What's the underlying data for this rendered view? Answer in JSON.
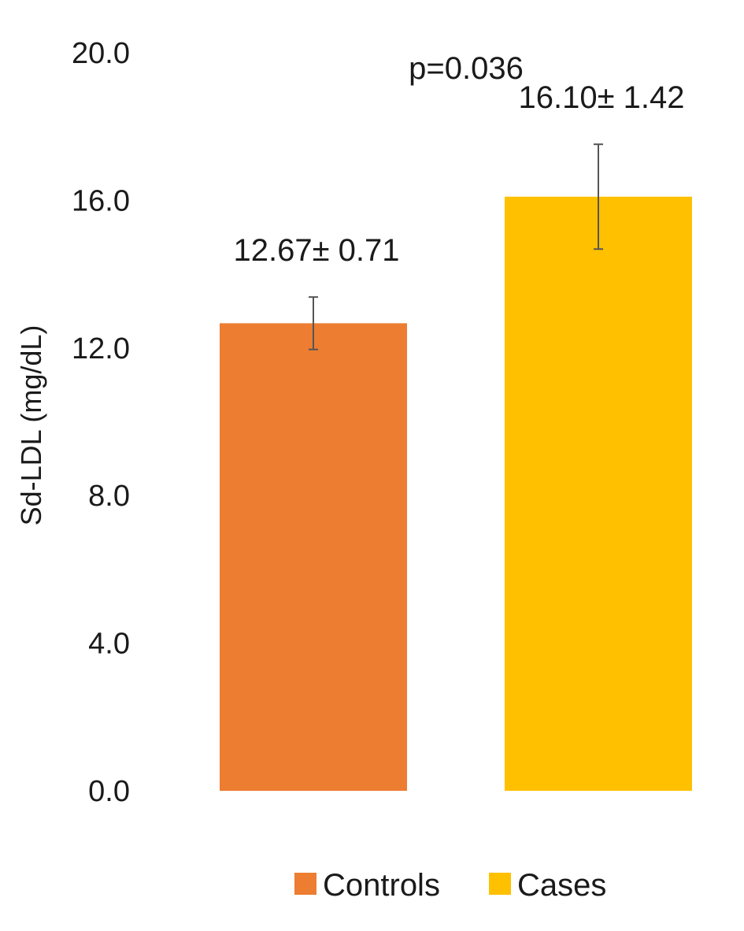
{
  "chart_data": {
    "type": "bar",
    "title": "",
    "xlabel": "",
    "ylabel": "Sd-LDL (mg/dL)",
    "ylim": [
      0,
      20
    ],
    "yticks": [
      "0.0",
      "4.0",
      "8.0",
      "12.0",
      "16.0",
      "20.0"
    ],
    "ytick_values": [
      0,
      4,
      8,
      12,
      16,
      20
    ],
    "grid": false,
    "legend_position": "bottom",
    "categories": [
      "Controls",
      "Cases"
    ],
    "values": [
      12.67,
      16.1
    ],
    "errors": [
      0.71,
      1.42
    ],
    "data_labels": [
      "12.67± 0.71",
      "16.10± 1.42"
    ],
    "colors": [
      "#ED7D31",
      "#FFC000"
    ],
    "legend": [
      {
        "name": "Controls",
        "color": "#ED7D31"
      },
      {
        "name": "Cases",
        "color": "#FFC000"
      }
    ],
    "annotation": "p=0.036"
  }
}
